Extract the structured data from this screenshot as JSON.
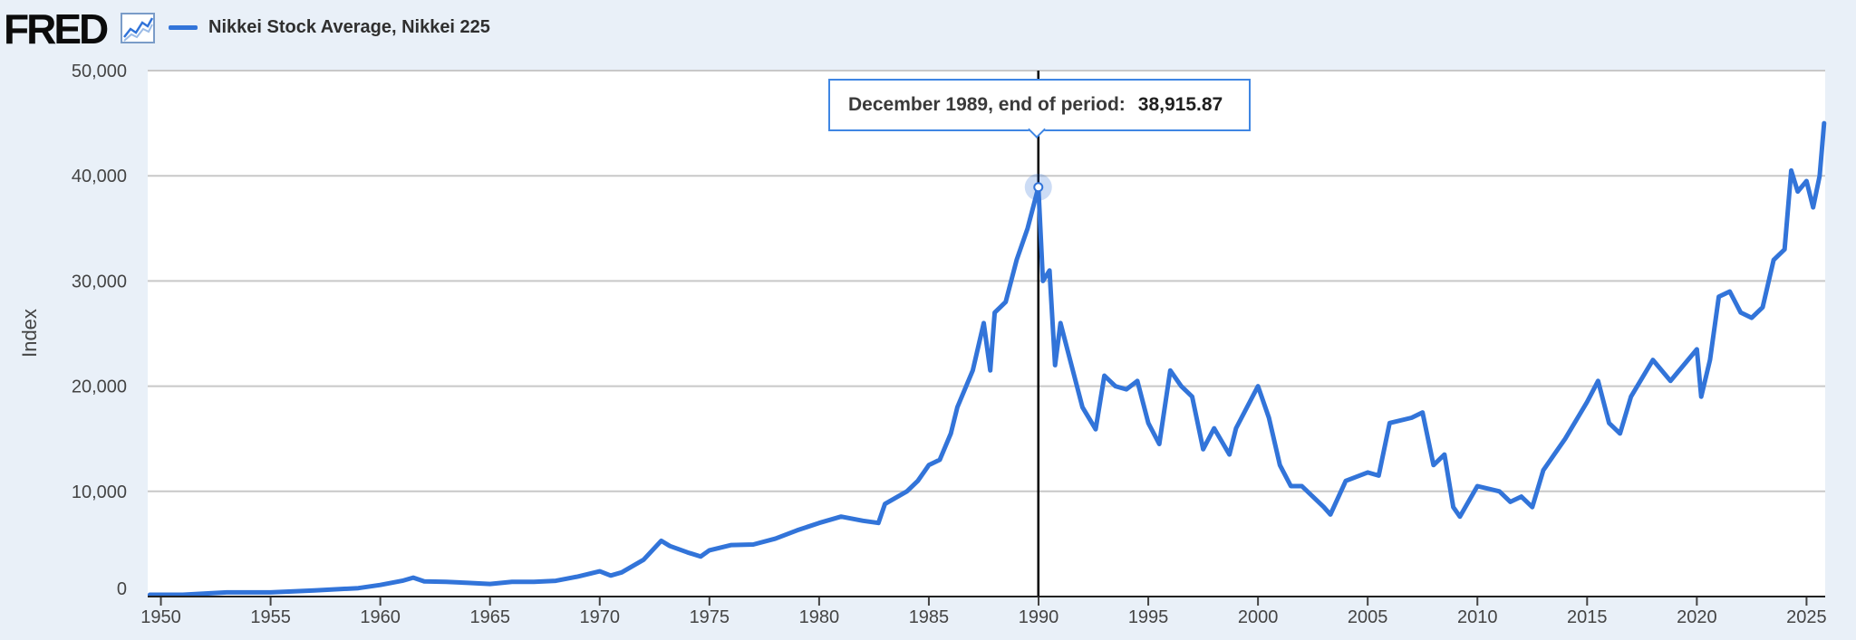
{
  "header": {
    "logo_text": "FRED",
    "logo_icon": "line-chart-icon",
    "legend_label": "Nikkei Stock Average, Nikkei 225"
  },
  "tooltip": {
    "label": "December 1989, end of period:",
    "value": "38,915.87"
  },
  "colors": {
    "series": "#3274d9",
    "background": "#e9f0f8",
    "plot_background": "#ffffff",
    "gridline": "#c8c8c8",
    "crosshair": "#000000",
    "tooltip_border": "#3f86e3"
  },
  "chart_data": {
    "type": "line",
    "series": [
      {
        "name": "Nikkei Stock Average, Nikkei 225",
        "x": [
          1949.5,
          1951,
          1953,
          1955,
          1957,
          1959,
          1960,
          1961,
          1961.5,
          1962,
          1963,
          1964,
          1965,
          1966,
          1967,
          1968,
          1969,
          1970,
          1970.5,
          1971,
          1972,
          1972.8,
          1973.2,
          1974,
          1974.6,
          1975,
          1976,
          1977,
          1978,
          1979,
          1980,
          1981,
          1982,
          1982.7,
          1983,
          1984,
          1984.5,
          1985,
          1985.5,
          1986,
          1986.3,
          1987,
          1987.5,
          1987.8,
          1988,
          1988.5,
          1989,
          1989.5,
          1989.99,
          1990.2,
          1990.5,
          1990.75,
          1991,
          1991.5,
          1992,
          1992.6,
          1993,
          1993.5,
          1994,
          1994.5,
          1995,
          1995.5,
          1996,
          1996.5,
          1997,
          1997.5,
          1998,
          1998.7,
          1999,
          2000,
          2000.5,
          2001,
          2001.5,
          2002,
          2003,
          2003.3,
          2004,
          2005,
          2005.5,
          2006,
          2007,
          2007.5,
          2008,
          2008.5,
          2008.9,
          2009.2,
          2010,
          2011,
          2011.5,
          2012,
          2012.5,
          2013,
          2013.5,
          2014,
          2015,
          2015.5,
          2016,
          2016.5,
          2017,
          2018,
          2018.8,
          2019,
          2020,
          2020.2,
          2020.6,
          2021,
          2021.5,
          2022,
          2022.5,
          2023,
          2023.5,
          2024,
          2024.3,
          2024.6,
          2025,
          2025.3,
          2025.6,
          2025.8
        ],
        "y": [
          176,
          170,
          400,
          400,
          580,
          800,
          1100,
          1500,
          1800,
          1450,
          1400,
          1300,
          1200,
          1400,
          1400,
          1500,
          1900,
          2400,
          2000,
          2300,
          3500,
          5300,
          4800,
          4200,
          3800,
          4400,
          4900,
          4950,
          5500,
          6300,
          7000,
          7600,
          7200,
          7000,
          8800,
          10000,
          11000,
          12500,
          13000,
          15500,
          18000,
          21500,
          26000,
          21500,
          27000,
          28000,
          32000,
          35000,
          38915.87,
          30000,
          31000,
          22000,
          26000,
          22000,
          18000,
          15900,
          21000,
          20000,
          19700,
          20500,
          16500,
          14500,
          21500,
          20000,
          19000,
          14000,
          16000,
          13500,
          16000,
          20000,
          17000,
          12500,
          10500,
          10500,
          8500,
          7800,
          11000,
          11800,
          11500,
          16500,
          17000,
          17500,
          12500,
          13500,
          8500,
          7600,
          10500,
          10000,
          9000,
          9500,
          8500,
          12000,
          13500,
          15000,
          18500,
          20500,
          16500,
          15500,
          19000,
          22500,
          20500,
          21000,
          23500,
          19000,
          22500,
          28500,
          29000,
          27000,
          26500,
          27500,
          32000,
          33000,
          40500,
          38500,
          39500,
          37000,
          40000,
          45000
        ],
        "color": "#3274d9"
      }
    ],
    "title": "",
    "xlabel": "",
    "ylabel": "Index",
    "xlim": [
      1949.4,
      2025.85
    ],
    "ylim": [
      0,
      50000
    ],
    "x_ticks": [
      1950,
      1955,
      1960,
      1965,
      1970,
      1975,
      1980,
      1985,
      1990,
      1995,
      2000,
      2005,
      2010,
      2015,
      2020,
      2025
    ],
    "x_tick_labels": [
      "1950",
      "1955",
      "1960",
      "1965",
      "1970",
      "1975",
      "1980",
      "1985",
      "1990",
      "1995",
      "2000",
      "2005",
      "2010",
      "2015",
      "2020",
      "2025"
    ],
    "y_ticks": [
      0,
      10000,
      20000,
      30000,
      40000,
      50000
    ],
    "y_tick_labels": [
      "0",
      "10,000",
      "20,000",
      "30,000",
      "40,000",
      "50,000"
    ],
    "grid": true,
    "highlight": {
      "x": 1989.99,
      "y": 38915.87
    },
    "legend_position": "top-left"
  }
}
